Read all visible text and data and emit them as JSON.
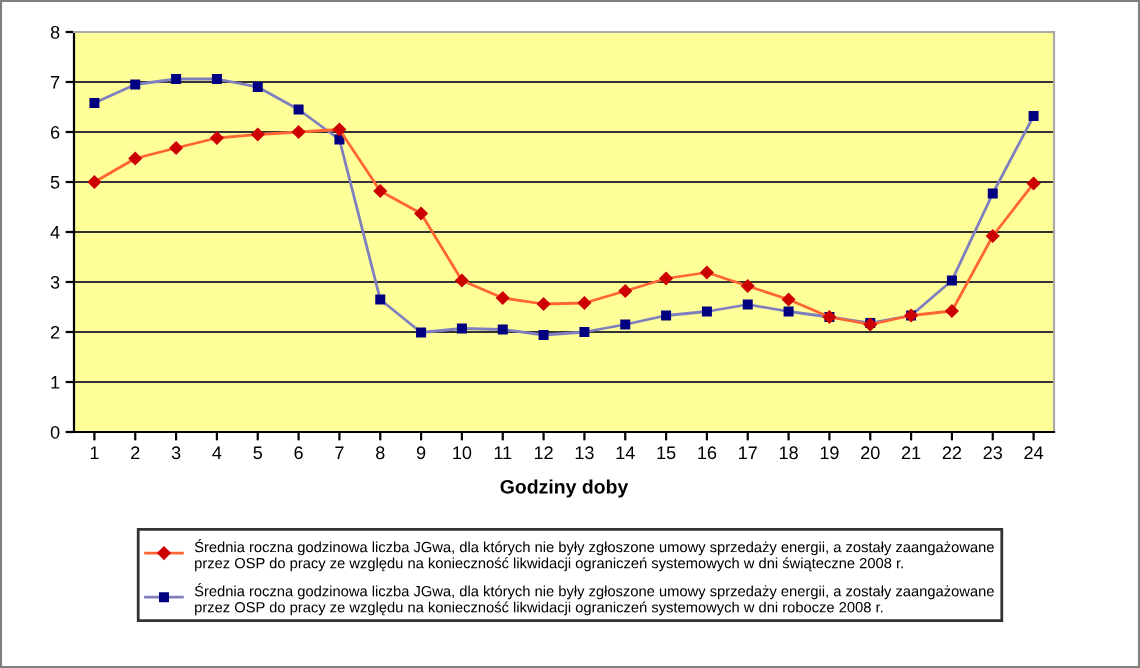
{
  "chart_data": {
    "type": "line",
    "xlabel": "Godziny doby",
    "categories": [
      "1",
      "2",
      "3",
      "4",
      "5",
      "6",
      "7",
      "8",
      "9",
      "10",
      "11",
      "12",
      "13",
      "14",
      "15",
      "16",
      "17",
      "18",
      "19",
      "20",
      "21",
      "22",
      "23",
      "24"
    ],
    "series": [
      {
        "name": "Średnia roczna godzinowa liczba JGwa, dla których nie były zgłoszone umowy sprzedaży energii, a zostały zaangażowane przez OSP do pracy ze względu na konieczność likwidacji ograniczeń systemowych w dni świąteczne 2008 r.",
        "color": "#ff6633",
        "marker": "diamond",
        "values": [
          5.0,
          5.47,
          5.68,
          5.88,
          5.95,
          6.0,
          6.05,
          4.82,
          4.37,
          3.03,
          2.68,
          2.56,
          2.58,
          2.82,
          3.07,
          3.19,
          2.92,
          2.65,
          2.3,
          2.15,
          2.33,
          2.42,
          3.92,
          4.97
        ]
      },
      {
        "name": "Średnia roczna godzinowa liczba JGwa, dla których nie były zgłoszone umowy sprzedaży energii, a zostały zaangażowane przez OSP do pracy ze względu na konieczność likwidacji ograniczeń systemowych w dni robocze 2008 r.",
        "color": "#7f7fbf",
        "marker": "square",
        "values": [
          6.58,
          6.95,
          7.06,
          7.06,
          6.9,
          6.45,
          5.85,
          2.65,
          1.99,
          2.07,
          2.05,
          1.94,
          2.0,
          2.15,
          2.33,
          2.41,
          2.55,
          2.41,
          2.3,
          2.18,
          2.33,
          3.03,
          4.77,
          6.32
        ]
      }
    ],
    "ylim": [
      0,
      8
    ],
    "yticks": [
      0,
      1,
      2,
      3,
      4,
      5,
      6,
      7,
      8
    ],
    "grid": "y",
    "legend": "bottom"
  }
}
